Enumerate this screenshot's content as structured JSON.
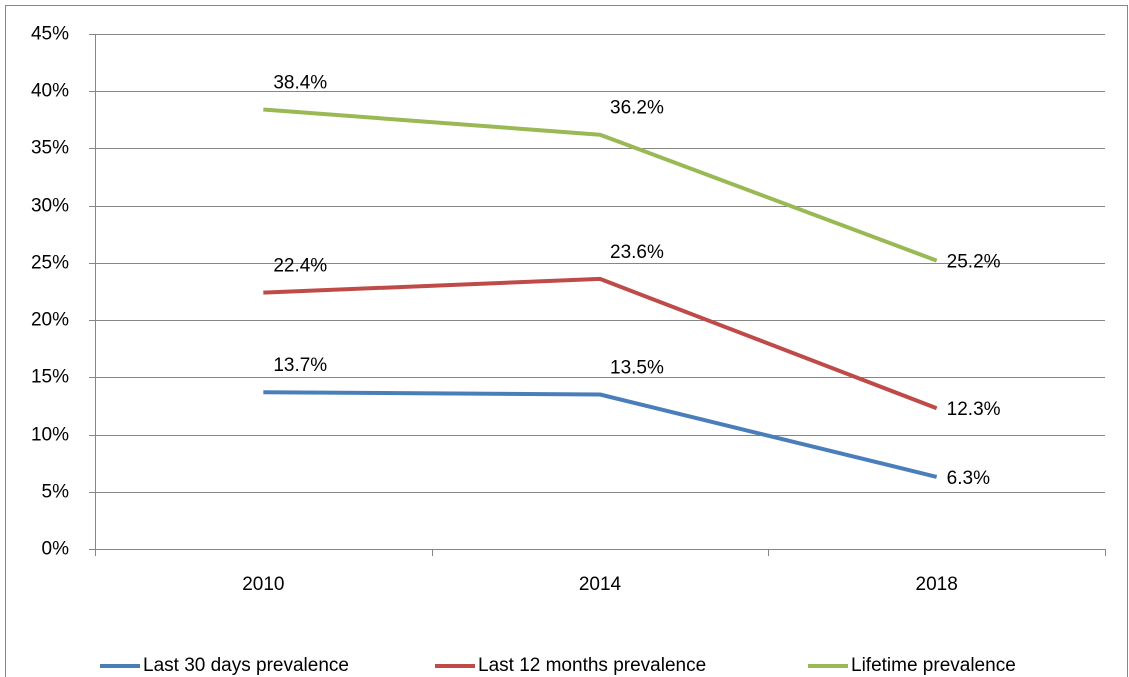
{
  "chart_data": {
    "type": "line",
    "categories": [
      "2010",
      "2014",
      "2018"
    ],
    "series": [
      {
        "name": "Last 30 days prevalence",
        "color": "#4a7ebb",
        "values": [
          13.7,
          13.5,
          6.3
        ],
        "value_labels": [
          "13.7%",
          "13.5%",
          "6.3%"
        ]
      },
      {
        "name": "Last 12 months prevalence",
        "color": "#be4b48",
        "values": [
          22.4,
          23.6,
          12.3
        ],
        "value_labels": [
          "22.4%",
          "23.6%",
          "12.3%"
        ]
      },
      {
        "name": "Lifetime prevalence",
        "color": "#98b954",
        "values": [
          38.4,
          36.2,
          25.2
        ],
        "value_labels": [
          "38.4%",
          "36.2%",
          "25.2%"
        ]
      }
    ],
    "ylim": [
      0,
      45
    ],
    "yticks": [
      {
        "value": 0,
        "label": "0%"
      },
      {
        "value": 5,
        "label": "5%"
      },
      {
        "value": 10,
        "label": "10%"
      },
      {
        "value": 15,
        "label": "15%"
      },
      {
        "value": 20,
        "label": "20%"
      },
      {
        "value": 25,
        "label": "25%"
      },
      {
        "value": 30,
        "label": "30%"
      },
      {
        "value": 35,
        "label": "35%"
      },
      {
        "value": 40,
        "label": "40%"
      },
      {
        "value": 45,
        "label": "45%"
      }
    ],
    "grid": true,
    "legend": "bottom"
  }
}
